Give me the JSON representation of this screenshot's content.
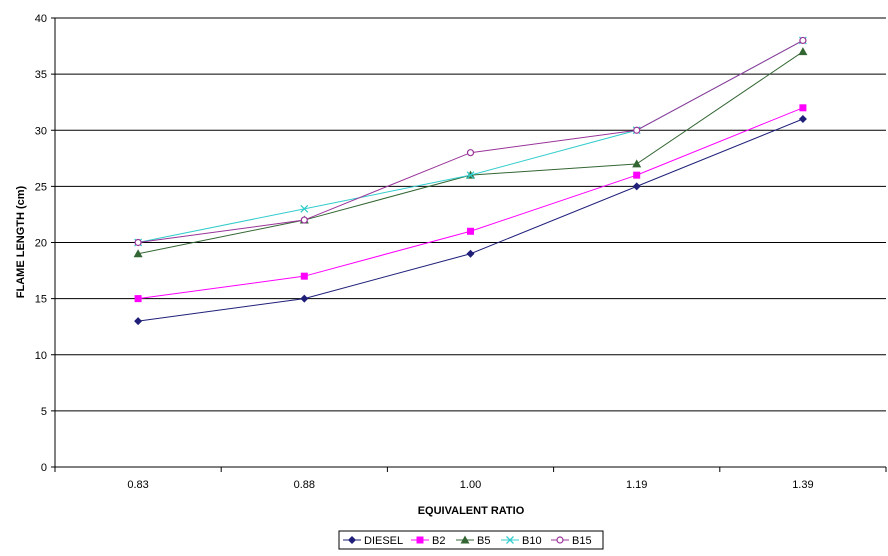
{
  "chart_data": {
    "type": "line",
    "categories": [
      "0.83",
      "0.88",
      "1.00",
      "1.19",
      "1.39"
    ],
    "xlabel": "EQUIVALENT RATIO",
    "ylabel": "FLAME LENGTH (cm)",
    "ylim": [
      0,
      40
    ],
    "yticks": [
      0,
      5,
      10,
      15,
      20,
      25,
      30,
      35,
      40
    ],
    "grid": "horizontal",
    "legend": "bottom",
    "series": [
      {
        "name": "DIESEL",
        "values": [
          13,
          15,
          19,
          25,
          31
        ],
        "color": "#1f1f7a",
        "marker": "diamond"
      },
      {
        "name": "B2",
        "values": [
          15,
          17,
          21,
          26,
          32
        ],
        "color": "#ff00ff",
        "marker": "square"
      },
      {
        "name": "B5",
        "values": [
          19,
          22,
          26,
          27,
          37
        ],
        "color": "#336633",
        "marker": "triangle"
      },
      {
        "name": "B10",
        "values": [
          20,
          23,
          26,
          30,
          38
        ],
        "color": "#33cccc",
        "marker": "x"
      },
      {
        "name": "B15",
        "values": [
          20,
          22,
          28,
          30,
          38
        ],
        "color": "#993399",
        "marker": "circle"
      }
    ]
  }
}
